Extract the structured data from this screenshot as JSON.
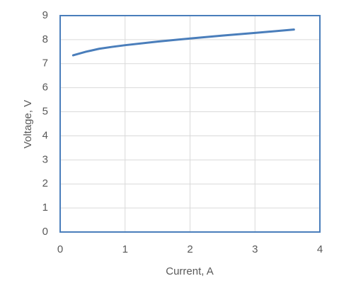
{
  "chart_data": {
    "type": "line",
    "x_label": "Current, A",
    "y_label": "Voltage, V",
    "series": [
      {
        "name": "Voltage",
        "color": "#4a7ebb",
        "x": [
          0.2,
          0.4,
          0.6,
          0.8,
          1.0,
          1.5,
          2.0,
          2.5,
          3.0,
          3.6
        ],
        "values": [
          7.35,
          7.5,
          7.62,
          7.7,
          7.77,
          7.92,
          8.05,
          8.17,
          8.28,
          8.42
        ]
      }
    ],
    "xlim": [
      0,
      4
    ],
    "xticks": [
      0,
      1,
      2,
      3,
      4
    ],
    "ylim": [
      0,
      9
    ],
    "yticks": [
      0,
      1,
      2,
      3,
      4,
      5,
      6,
      7,
      8,
      9
    ],
    "grid": true,
    "legend": false
  }
}
